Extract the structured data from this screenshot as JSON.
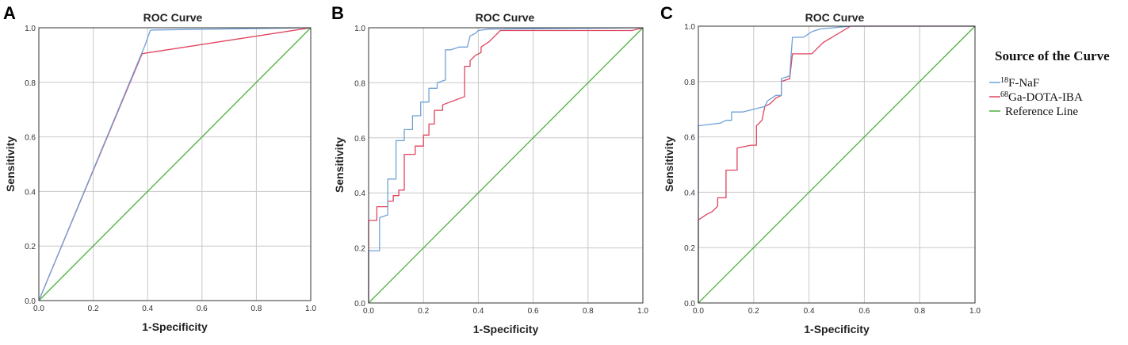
{
  "chart_data": [
    {
      "panel": "A",
      "type": "line",
      "title": "ROC Curve",
      "xlabel": "1-Specificity",
      "ylabel": "Sensitivity",
      "xlim": [
        0,
        1
      ],
      "ylim": [
        0,
        1
      ],
      "ticks": [
        "0.0",
        "0.2",
        "0.4",
        "0.6",
        "0.8",
        "1.0"
      ],
      "series": [
        {
          "name": "Reference Line",
          "color": "#4caf3c",
          "points": [
            [
              0,
              0
            ],
            [
              1,
              1
            ]
          ]
        },
        {
          "name": "68Ga-DOTA-IBA",
          "color": "#e0435e",
          "points": [
            [
              0,
              0
            ],
            [
              0.38,
              0.905
            ],
            [
              1.0,
              1.0
            ]
          ]
        },
        {
          "name": "18F-NaF",
          "color": "#6fa2d8",
          "points": [
            [
              0,
              0
            ],
            [
              0.39,
              0.935
            ],
            [
              0.41,
              0.99
            ],
            [
              0.42,
              0.992
            ],
            [
              1.0,
              1.0
            ]
          ]
        }
      ]
    },
    {
      "panel": "B",
      "type": "line",
      "title": "ROC Curve",
      "xlabel": "1-Specificity",
      "ylabel": "Sensitivity",
      "xlim": [
        0,
        1
      ],
      "ylim": [
        0,
        1
      ],
      "ticks": [
        "0.0",
        "0.2",
        "0.4",
        "0.6",
        "0.8",
        "1.0"
      ],
      "series": [
        {
          "name": "Reference Line",
          "color": "#4caf3c",
          "points": [
            [
              0,
              0
            ],
            [
              1,
              1
            ]
          ]
        },
        {
          "name": "68Ga-DOTA-IBA",
          "color": "#e0435e",
          "points": [
            [
              0,
              0
            ],
            [
              0,
              0.3
            ],
            [
              0.03,
              0.3
            ],
            [
              0.03,
              0.35
            ],
            [
              0.07,
              0.35
            ],
            [
              0.07,
              0.37
            ],
            [
              0.09,
              0.37
            ],
            [
              0.09,
              0.39
            ],
            [
              0.11,
              0.39
            ],
            [
              0.11,
              0.41
            ],
            [
              0.13,
              0.41
            ],
            [
              0.13,
              0.54
            ],
            [
              0.17,
              0.54
            ],
            [
              0.17,
              0.57
            ],
            [
              0.2,
              0.57
            ],
            [
              0.2,
              0.61
            ],
            [
              0.22,
              0.61
            ],
            [
              0.22,
              0.65
            ],
            [
              0.24,
              0.65
            ],
            [
              0.24,
              0.7
            ],
            [
              0.27,
              0.7
            ],
            [
              0.27,
              0.72
            ],
            [
              0.35,
              0.75
            ],
            [
              0.35,
              0.86
            ],
            [
              0.37,
              0.86
            ],
            [
              0.37,
              0.88
            ],
            [
              0.39,
              0.9
            ],
            [
              0.41,
              0.91
            ],
            [
              0.41,
              0.93
            ],
            [
              0.44,
              0.95
            ],
            [
              0.46,
              0.97
            ],
            [
              0.48,
              0.99
            ],
            [
              0.96,
              0.99
            ],
            [
              1.0,
              1.0
            ]
          ]
        },
        {
          "name": "18F-NaF",
          "color": "#6fa2d8",
          "points": [
            [
              0,
              0
            ],
            [
              0,
              0.19
            ],
            [
              0.04,
              0.19
            ],
            [
              0.04,
              0.31
            ],
            [
              0.07,
              0.32
            ],
            [
              0.07,
              0.45
            ],
            [
              0.1,
              0.45
            ],
            [
              0.1,
              0.59
            ],
            [
              0.13,
              0.59
            ],
            [
              0.13,
              0.63
            ],
            [
              0.16,
              0.63
            ],
            [
              0.16,
              0.68
            ],
            [
              0.19,
              0.68
            ],
            [
              0.19,
              0.73
            ],
            [
              0.22,
              0.73
            ],
            [
              0.22,
              0.78
            ],
            [
              0.25,
              0.78
            ],
            [
              0.25,
              0.8
            ],
            [
              0.28,
              0.81
            ],
            [
              0.28,
              0.92
            ],
            [
              0.3,
              0.92
            ],
            [
              0.33,
              0.93
            ],
            [
              0.36,
              0.93
            ],
            [
              0.37,
              0.97
            ],
            [
              0.39,
              0.98
            ],
            [
              0.4,
              0.99
            ],
            [
              0.44,
              0.995
            ],
            [
              1.0,
              1.0
            ]
          ]
        }
      ]
    },
    {
      "panel": "C",
      "type": "line",
      "title": "ROC Curve",
      "xlabel": "1-Specificity",
      "ylabel": "Sensitivity",
      "xlim": [
        0,
        1
      ],
      "ylim": [
        0,
        1
      ],
      "ticks": [
        "0.0",
        "0.2",
        "0.4",
        "0.6",
        "0.8",
        "1.0"
      ],
      "series": [
        {
          "name": "Reference Line",
          "color": "#4caf3c",
          "points": [
            [
              0,
              0
            ],
            [
              1,
              1
            ]
          ]
        },
        {
          "name": "68Ga-DOTA-IBA",
          "color": "#e0435e",
          "points": [
            [
              0,
              0
            ],
            [
              0,
              0.3
            ],
            [
              0.03,
              0.32
            ],
            [
              0.05,
              0.33
            ],
            [
              0.07,
              0.35
            ],
            [
              0.07,
              0.38
            ],
            [
              0.1,
              0.38
            ],
            [
              0.1,
              0.48
            ],
            [
              0.14,
              0.48
            ],
            [
              0.14,
              0.56
            ],
            [
              0.19,
              0.57
            ],
            [
              0.21,
              0.57
            ],
            [
              0.21,
              0.64
            ],
            [
              0.23,
              0.66
            ],
            [
              0.24,
              0.71
            ],
            [
              0.26,
              0.72
            ],
            [
              0.28,
              0.74
            ],
            [
              0.3,
              0.75
            ],
            [
              0.3,
              0.8
            ],
            [
              0.33,
              0.81
            ],
            [
              0.34,
              0.9
            ],
            [
              0.41,
              0.9
            ],
            [
              0.45,
              0.94
            ],
            [
              0.55,
              1.0
            ],
            [
              1.0,
              1.0
            ]
          ]
        },
        {
          "name": "18F-NaF",
          "color": "#6fa2d8",
          "points": [
            [
              0,
              0
            ],
            [
              0,
              0.64
            ],
            [
              0.08,
              0.65
            ],
            [
              0.1,
              0.66
            ],
            [
              0.12,
              0.66
            ],
            [
              0.12,
              0.69
            ],
            [
              0.16,
              0.69
            ],
            [
              0.2,
              0.7
            ],
            [
              0.24,
              0.71
            ],
            [
              0.25,
              0.73
            ],
            [
              0.28,
              0.75
            ],
            [
              0.3,
              0.75
            ],
            [
              0.3,
              0.81
            ],
            [
              0.33,
              0.82
            ],
            [
              0.34,
              0.96
            ],
            [
              0.38,
              0.96
            ],
            [
              0.41,
              0.98
            ],
            [
              0.44,
              0.99
            ],
            [
              0.55,
              1.0
            ],
            [
              1.0,
              1.0
            ]
          ]
        }
      ]
    }
  ],
  "legend": {
    "title": "Source of the Curve",
    "items": [
      {
        "iso": "18",
        "label": "F-NaF",
        "color": "#6fa2d8"
      },
      {
        "iso": "68",
        "label": "Ga-DOTA-IBA",
        "color": "#e0435e"
      },
      {
        "iso": "",
        "label": "Reference Line",
        "color": "#4caf3c"
      }
    ]
  }
}
